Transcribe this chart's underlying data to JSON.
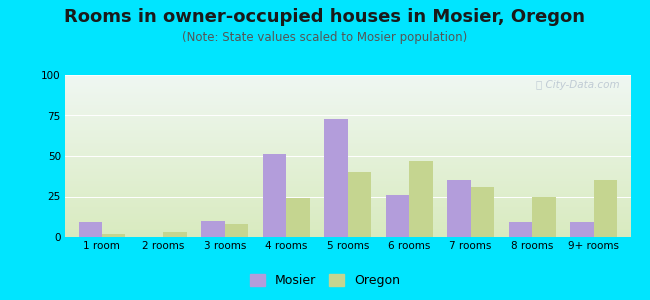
{
  "title": "Rooms in owner-occupied houses in Mosier, Oregon",
  "subtitle": "(Note: State values scaled to Mosier population)",
  "categories": [
    "1 room",
    "2 rooms",
    "3 rooms",
    "4 rooms",
    "5 rooms",
    "6 rooms",
    "7 rooms",
    "8 rooms",
    "9+ rooms"
  ],
  "mosier": [
    9,
    0,
    10,
    51,
    73,
    26,
    35,
    9,
    9
  ],
  "oregon": [
    2,
    3,
    8,
    24,
    40,
    47,
    31,
    25,
    35
  ],
  "mosier_color": "#b39ddb",
  "oregon_color": "#c5d590",
  "background_outer": "#00e5ff",
  "ylim": [
    0,
    100
  ],
  "yticks": [
    0,
    25,
    50,
    75,
    100
  ],
  "bar_width": 0.38,
  "title_fontsize": 13,
  "subtitle_fontsize": 8.5,
  "tick_fontsize": 7.5,
  "legend_fontsize": 9
}
